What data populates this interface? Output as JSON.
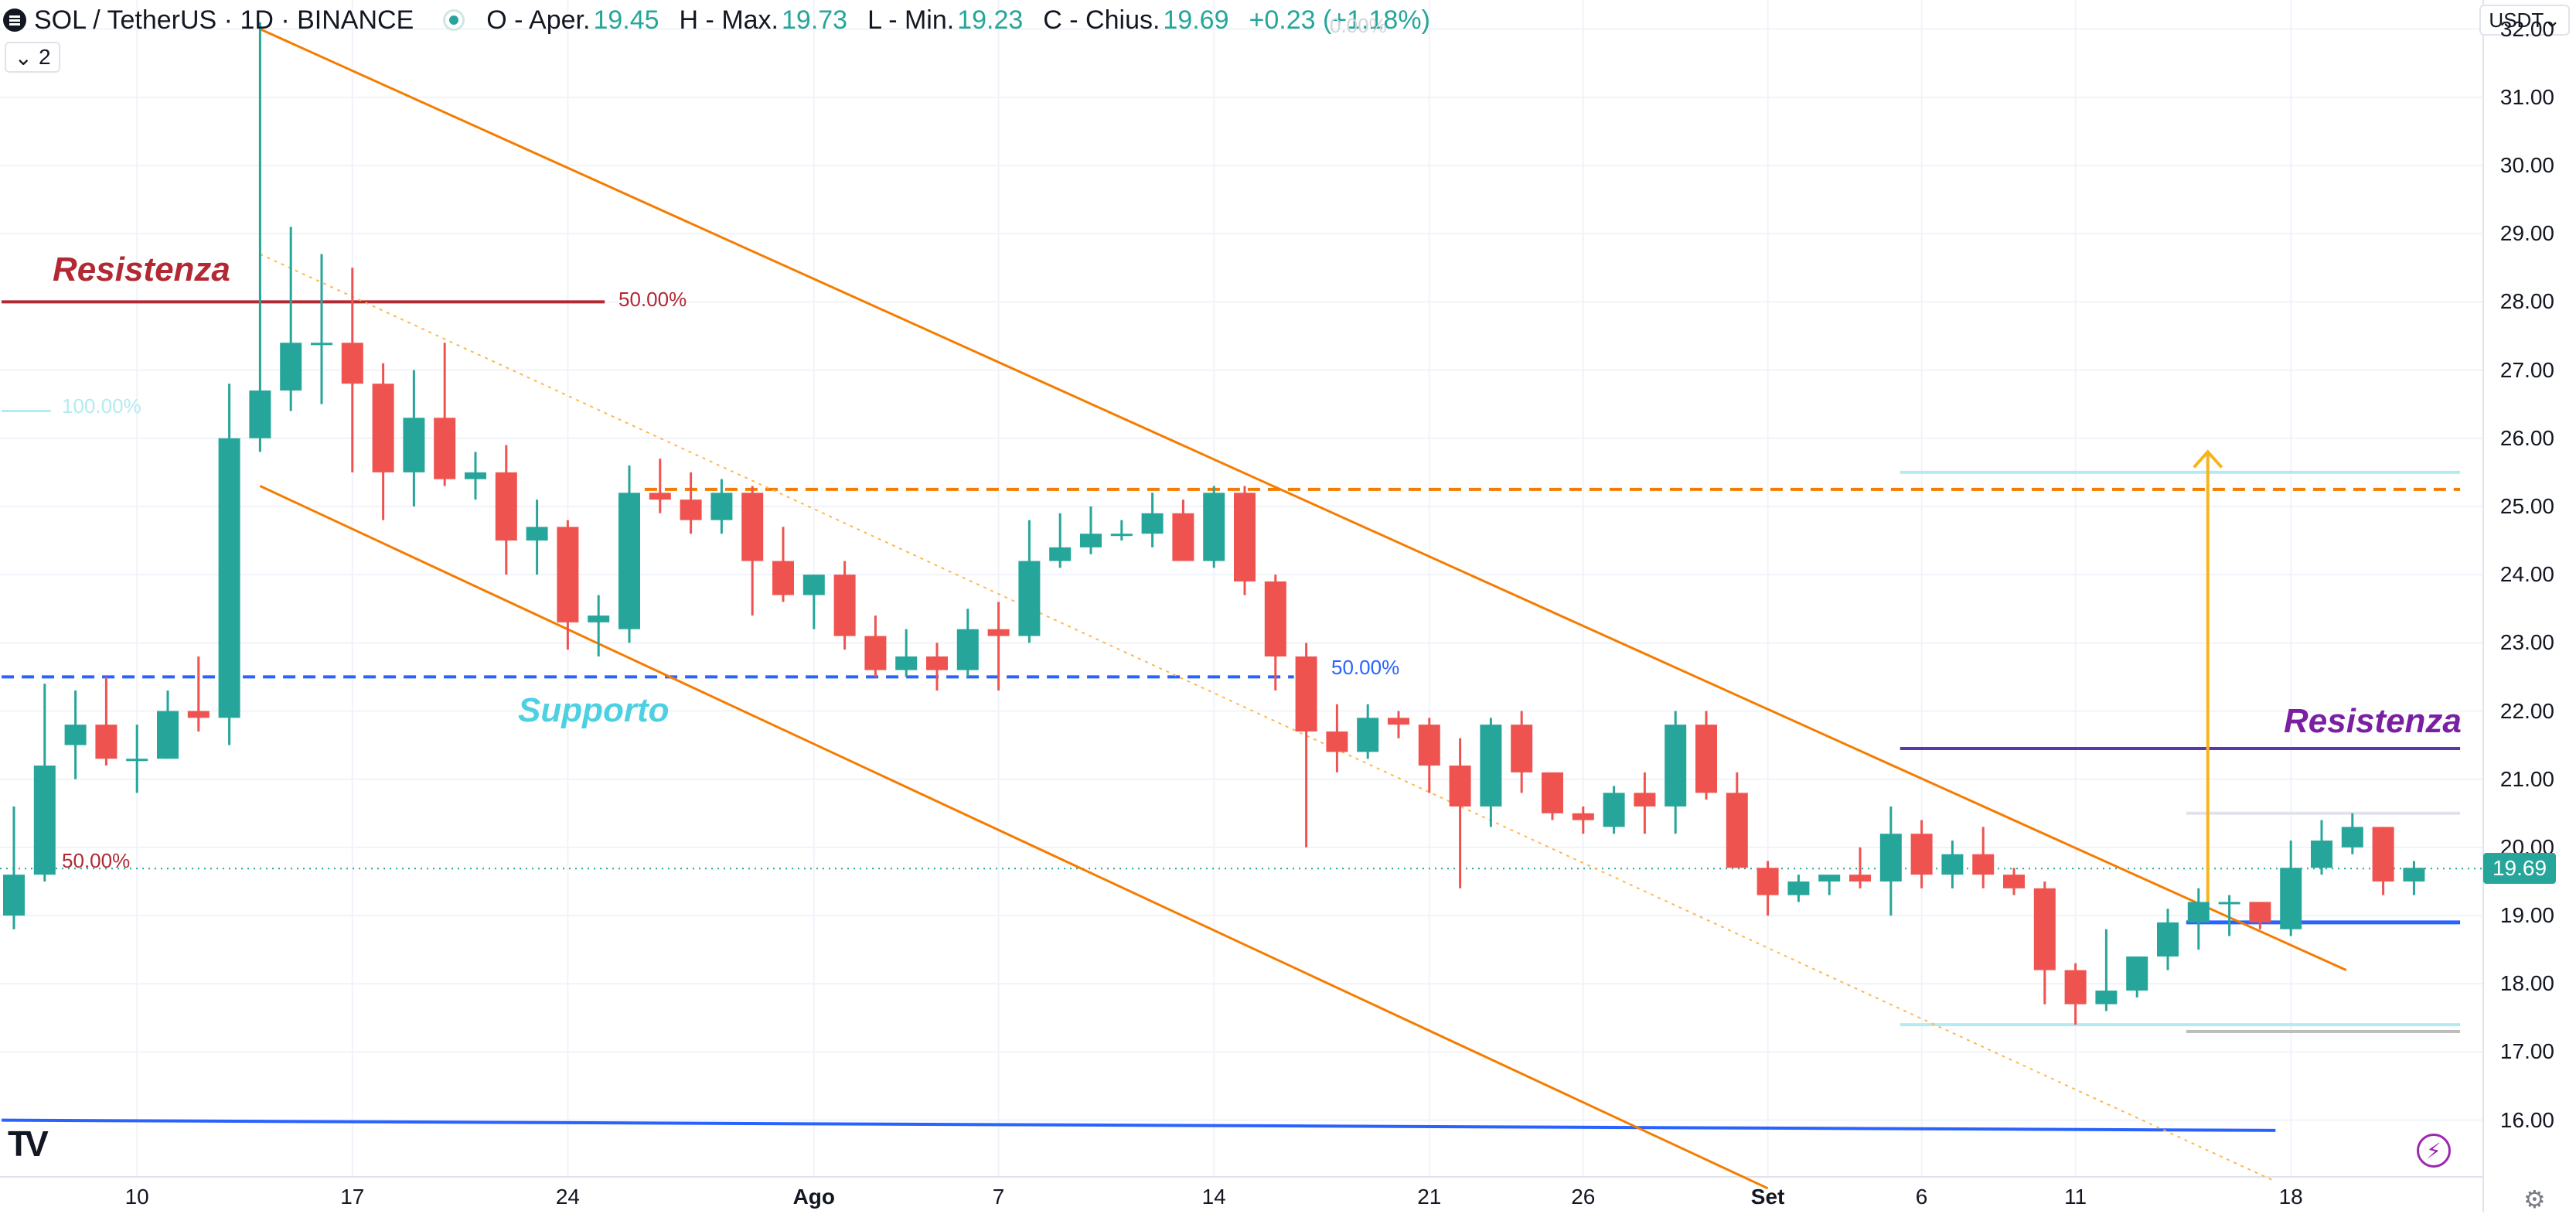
{
  "header": {
    "symbol": "SOL / TetherUS · 1D · BINANCE",
    "open_label": "O - Aper.",
    "open_value": "19.45",
    "high_label": "H - Max.",
    "high_value": "19.73",
    "low_label": "L - Min.",
    "low_value": "19.23",
    "close_label": "C - Chius.",
    "close_value": "19.69",
    "change": "+0.23 (+1.18%)"
  },
  "legend_toggle": {
    "count": "2"
  },
  "currency": "USDT",
  "current_price_tag": "19.69",
  "colors": {
    "up": "#26a69a",
    "down": "#ef5350",
    "channel": "#f57c00",
    "support": "#2962ff",
    "resistance_red": "#b22833",
    "resistance_purple": "#5e35b1",
    "target_arrow": "#f9b41d"
  },
  "annotations": {
    "resistance_left": "Resistenza",
    "support": "Supporto",
    "resistance_right": "Resistenza",
    "pct_50_red_top": "50.00%",
    "pct_100_left": "100.00%",
    "pct_50_red_low": "50.00%",
    "pct_50_blue": "50.00%",
    "pct_0_top": "0.00%"
  },
  "tv_logo": "TV",
  "chart_data": {
    "type": "candlestick",
    "title": "",
    "xlabel": "",
    "ylabel": "",
    "y_range": [
      15.1,
      32.2
    ],
    "y_ticks": [
      "32.00",
      "31.00",
      "30.00",
      "29.00",
      "28.00",
      "27.00",
      "26.00",
      "25.00",
      "24.00",
      "23.00",
      "22.00",
      "21.00",
      "20.00",
      "19.00",
      "18.00",
      "17.00",
      "16.00"
    ],
    "x_ticks": [
      {
        "label": "10",
        "index": 4
      },
      {
        "label": "17",
        "index": 11
      },
      {
        "label": "24",
        "index": 18
      },
      {
        "label": "Ago",
        "index": 26
      },
      {
        "label": "7",
        "index": 32
      },
      {
        "label": "14",
        "index": 39
      },
      {
        "label": "21",
        "index": 46
      },
      {
        "label": "26",
        "index": 51
      },
      {
        "label": "Set",
        "index": 57
      },
      {
        "label": "6",
        "index": 62
      },
      {
        "label": "11",
        "index": 67
      },
      {
        "label": "18",
        "index": 74
      }
    ],
    "candles": [
      {
        "o": 19.0,
        "h": 20.6,
        "l": 18.8,
        "c": 19.6
      },
      {
        "o": 19.6,
        "h": 22.4,
        "l": 19.5,
        "c": 21.2
      },
      {
        "o": 21.5,
        "h": 22.3,
        "l": 21.0,
        "c": 21.8
      },
      {
        "o": 21.8,
        "h": 22.5,
        "l": 21.2,
        "c": 21.3
      },
      {
        "o": 21.3,
        "h": 21.8,
        "l": 20.8,
        "c": 21.3
      },
      {
        "o": 21.3,
        "h": 22.3,
        "l": 21.3,
        "c": 22.0
      },
      {
        "o": 22.0,
        "h": 22.8,
        "l": 21.7,
        "c": 21.9
      },
      {
        "o": 21.9,
        "h": 26.8,
        "l": 21.5,
        "c": 26.0
      },
      {
        "o": 26.0,
        "h": 32.1,
        "l": 25.8,
        "c": 26.7
      },
      {
        "o": 26.7,
        "h": 29.1,
        "l": 26.4,
        "c": 27.4
      },
      {
        "o": 27.4,
        "h": 28.7,
        "l": 26.5,
        "c": 27.4
      },
      {
        "o": 27.4,
        "h": 28.5,
        "l": 25.5,
        "c": 26.8
      },
      {
        "o": 26.8,
        "h": 27.1,
        "l": 24.8,
        "c": 25.5
      },
      {
        "o": 25.5,
        "h": 27.0,
        "l": 25.0,
        "c": 26.3
      },
      {
        "o": 26.3,
        "h": 27.4,
        "l": 25.3,
        "c": 25.4
      },
      {
        "o": 25.4,
        "h": 25.8,
        "l": 25.1,
        "c": 25.5
      },
      {
        "o": 25.5,
        "h": 25.9,
        "l": 24.0,
        "c": 24.5
      },
      {
        "o": 24.5,
        "h": 25.1,
        "l": 24.0,
        "c": 24.7
      },
      {
        "o": 24.7,
        "h": 24.8,
        "l": 22.9,
        "c": 23.3
      },
      {
        "o": 23.3,
        "h": 23.7,
        "l": 22.8,
        "c": 23.4
      },
      {
        "o": 23.2,
        "h": 25.6,
        "l": 23.0,
        "c": 25.2
      },
      {
        "o": 25.2,
        "h": 25.7,
        "l": 24.9,
        "c": 25.1
      },
      {
        "o": 25.1,
        "h": 25.5,
        "l": 24.6,
        "c": 24.8
      },
      {
        "o": 24.8,
        "h": 25.4,
        "l": 24.6,
        "c": 25.2
      },
      {
        "o": 25.2,
        "h": 25.3,
        "l": 23.4,
        "c": 24.2
      },
      {
        "o": 24.2,
        "h": 24.7,
        "l": 23.6,
        "c": 23.7
      },
      {
        "o": 23.7,
        "h": 24.0,
        "l": 23.2,
        "c": 24.0
      },
      {
        "o": 24.0,
        "h": 24.2,
        "l": 22.9,
        "c": 23.1
      },
      {
        "o": 23.1,
        "h": 23.4,
        "l": 22.5,
        "c": 22.6
      },
      {
        "o": 22.6,
        "h": 23.2,
        "l": 22.5,
        "c": 22.8
      },
      {
        "o": 22.8,
        "h": 23.0,
        "l": 22.3,
        "c": 22.6
      },
      {
        "o": 22.6,
        "h": 23.5,
        "l": 22.5,
        "c": 23.2
      },
      {
        "o": 23.2,
        "h": 23.6,
        "l": 22.3,
        "c": 23.1
      },
      {
        "o": 23.1,
        "h": 24.8,
        "l": 23.0,
        "c": 24.2
      },
      {
        "o": 24.2,
        "h": 24.9,
        "l": 24.1,
        "c": 24.4
      },
      {
        "o": 24.4,
        "h": 25.0,
        "l": 24.3,
        "c": 24.6
      },
      {
        "o": 24.6,
        "h": 24.8,
        "l": 24.5,
        "c": 24.6
      },
      {
        "o": 24.6,
        "h": 25.2,
        "l": 24.4,
        "c": 24.9
      },
      {
        "o": 24.9,
        "h": 25.1,
        "l": 24.2,
        "c": 24.2
      },
      {
        "o": 24.2,
        "h": 25.3,
        "l": 24.1,
        "c": 25.2
      },
      {
        "o": 25.2,
        "h": 25.3,
        "l": 23.7,
        "c": 23.9
      },
      {
        "o": 23.9,
        "h": 24.0,
        "l": 22.3,
        "c": 22.8
      },
      {
        "o": 22.8,
        "h": 23.0,
        "l": 20.0,
        "c": 21.7
      },
      {
        "o": 21.7,
        "h": 22.1,
        "l": 21.1,
        "c": 21.4
      },
      {
        "o": 21.4,
        "h": 22.1,
        "l": 21.3,
        "c": 21.9
      },
      {
        "o": 21.9,
        "h": 22.0,
        "l": 21.6,
        "c": 21.8
      },
      {
        "o": 21.8,
        "h": 21.9,
        "l": 20.8,
        "c": 21.2
      },
      {
        "o": 21.2,
        "h": 21.6,
        "l": 19.4,
        "c": 20.6
      },
      {
        "o": 20.6,
        "h": 21.9,
        "l": 20.3,
        "c": 21.8
      },
      {
        "o": 21.8,
        "h": 22.0,
        "l": 20.8,
        "c": 21.1
      },
      {
        "o": 21.1,
        "h": 21.1,
        "l": 20.4,
        "c": 20.5
      },
      {
        "o": 20.5,
        "h": 20.6,
        "l": 20.2,
        "c": 20.4
      },
      {
        "o": 20.3,
        "h": 20.9,
        "l": 20.2,
        "c": 20.8
      },
      {
        "o": 20.8,
        "h": 21.1,
        "l": 20.2,
        "c": 20.6
      },
      {
        "o": 20.6,
        "h": 22.0,
        "l": 20.2,
        "c": 21.8
      },
      {
        "o": 21.8,
        "h": 22.0,
        "l": 20.7,
        "c": 20.8
      },
      {
        "o": 20.8,
        "h": 21.1,
        "l": 19.7,
        "c": 19.7
      },
      {
        "o": 19.7,
        "h": 19.8,
        "l": 19.0,
        "c": 19.3
      },
      {
        "o": 19.3,
        "h": 19.6,
        "l": 19.2,
        "c": 19.5
      },
      {
        "o": 19.5,
        "h": 19.6,
        "l": 19.3,
        "c": 19.6
      },
      {
        "o": 19.6,
        "h": 20.0,
        "l": 19.4,
        "c": 19.5
      },
      {
        "o": 19.5,
        "h": 20.6,
        "l": 19.0,
        "c": 20.2
      },
      {
        "o": 20.2,
        "h": 20.4,
        "l": 19.4,
        "c": 19.6
      },
      {
        "o": 19.6,
        "h": 20.1,
        "l": 19.4,
        "c": 19.9
      },
      {
        "o": 19.9,
        "h": 20.3,
        "l": 19.4,
        "c": 19.6
      },
      {
        "o": 19.6,
        "h": 19.7,
        "l": 19.3,
        "c": 19.4
      },
      {
        "o": 19.4,
        "h": 19.5,
        "l": 17.7,
        "c": 18.2
      },
      {
        "o": 18.2,
        "h": 18.3,
        "l": 17.4,
        "c": 17.7
      },
      {
        "o": 17.7,
        "h": 18.8,
        "l": 17.6,
        "c": 17.9
      },
      {
        "o": 17.9,
        "h": 18.4,
        "l": 17.8,
        "c": 18.4
      },
      {
        "o": 18.4,
        "h": 19.1,
        "l": 18.2,
        "c": 18.9
      },
      {
        "o": 18.9,
        "h": 19.4,
        "l": 18.5,
        "c": 19.2
      },
      {
        "o": 19.2,
        "h": 19.3,
        "l": 18.7,
        "c": 19.2
      },
      {
        "o": 19.2,
        "h": 19.2,
        "l": 18.8,
        "c": 18.9
      },
      {
        "o": 18.8,
        "h": 20.1,
        "l": 18.7,
        "c": 19.7
      },
      {
        "o": 19.7,
        "h": 20.4,
        "l": 19.6,
        "c": 20.1
      },
      {
        "o": 20.0,
        "h": 20.5,
        "l": 19.9,
        "c": 20.3
      },
      {
        "o": 20.3,
        "h": 20.3,
        "l": 19.3,
        "c": 19.5
      },
      {
        "o": 19.5,
        "h": 19.8,
        "l": 19.3,
        "c": 19.7
      }
    ],
    "lines": {
      "channel_upper": [
        {
          "i": 8,
          "v": 32.0
        },
        {
          "i": 75.8,
          "v": 18.2
        }
      ],
      "channel_lower": [
        {
          "i": 8,
          "v": 25.3
        },
        {
          "i": 57,
          "v": 15.0
        }
      ],
      "channel_mid": [
        {
          "i": 8,
          "v": 28.7
        },
        {
          "i": 73.5,
          "v": 15.1
        }
      ],
      "resistance_red": {
        "v": 28.0,
        "i0": -0.4,
        "i1": 19.2
      },
      "support_blue_dashed": {
        "v": 22.5,
        "i0": -0.4,
        "i1": 41.6
      },
      "orange_dashed": {
        "v": 25.25,
        "i0": 20.5,
        "i1": 79.5
      },
      "resistance_purple": {
        "v": 21.45,
        "i0": 61.3,
        "i1": 79.5
      },
      "blue_solid": {
        "v": 18.9,
        "i0": 70.6,
        "i1": 79.5
      },
      "long_blue": [
        {
          "i": -0.4,
          "v": 16.0
        },
        {
          "i": 73.5,
          "v": 15.85
        }
      ],
      "cyan_top": {
        "v": 25.5,
        "i0": 61.3,
        "i1": 79.5
      },
      "cyan_bottom": {
        "v": 17.4,
        "i0": 61.3,
        "i1": 79.5
      },
      "grey_top": {
        "v": 20.5,
        "i0": 70.6,
        "i1": 79.5
      },
      "grey_bottom": {
        "v": 17.3,
        "i0": 70.6,
        "i1": 79.5
      },
      "cyan_left": {
        "v": 26.4,
        "i0": -0.4,
        "i1": 1.2
      },
      "target_arrow": {
        "i": 71.3,
        "v0": 19.2,
        "v1": 25.8
      },
      "current_price_dotted": {
        "v": 19.69
      }
    }
  }
}
